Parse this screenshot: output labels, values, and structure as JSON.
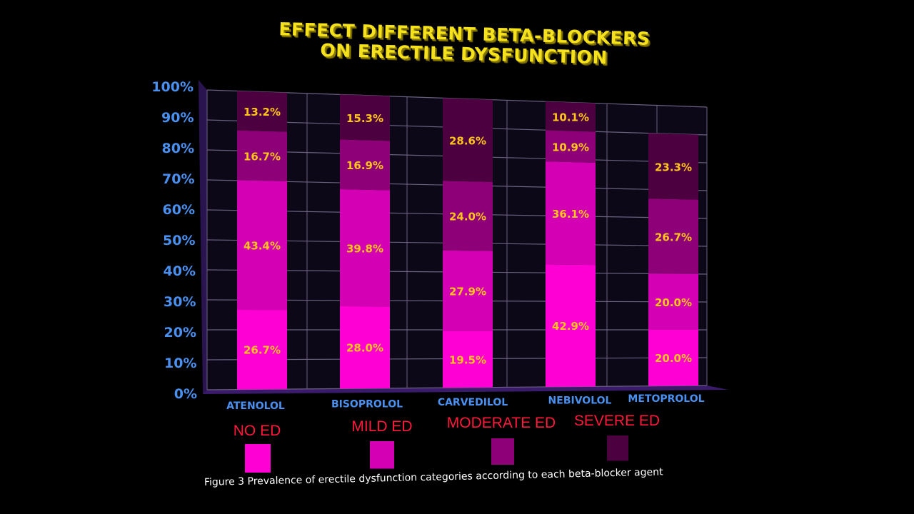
{
  "chart_data": {
    "type": "bar",
    "stacked": true,
    "title": "EFFECT DIFFERENT BETA-BLOCKERS ON ERECTILE DYSFUNCTION",
    "title_lines": [
      "EFFECT DIFFERENT BETA-BLOCKERS",
      "ON ERECTILE DYSFUNCTION"
    ],
    "xlabel": "",
    "ylabel": "",
    "ylim": [
      0,
      100
    ],
    "y_ticks": [
      "0%",
      "10%",
      "20%",
      "30%",
      "40%",
      "50%",
      "60%",
      "70%",
      "80%",
      "90%",
      "100%"
    ],
    "categories": [
      "ATENOLOL",
      "BISOPROLOL",
      "CARVEDILOL",
      "NEBIVOLOL",
      "METOPROLOL"
    ],
    "series": [
      {
        "name": "NO ED",
        "color": "#ff00d4",
        "values": [
          26.7,
          28.0,
          19.5,
          42.9,
          20.0
        ],
        "labels": [
          "26.7%",
          "28.0%",
          "19.5%",
          "42.9%",
          "20.0%"
        ]
      },
      {
        "name": "MILD ED",
        "color": "#d400b4",
        "values": [
          43.4,
          39.8,
          27.9,
          36.1,
          20.0
        ],
        "labels": [
          "43.4%",
          "39.8%",
          "27.9%",
          "36.1%",
          "20.0%"
        ]
      },
      {
        "name": "MODERATE ED",
        "color": "#8e0078",
        "values": [
          16.7,
          16.9,
          24.0,
          10.9,
          26.7
        ],
        "labels": [
          "16.7%",
          "16.9%",
          "24.0%",
          "10.9%",
          "26.7%"
        ]
      },
      {
        "name": "SEVERE ED",
        "color": "#4d0040",
        "values": [
          13.2,
          15.3,
          28.6,
          10.1,
          23.3
        ],
        "labels": [
          "13.2%",
          "15.3%",
          "28.6%",
          "10.1%",
          "23.3%"
        ]
      }
    ],
    "grid": true,
    "legend_position": "bottom",
    "caption": "Figure 3 Prevalence of erectile dysfunction categories according to each beta-blocker agent"
  },
  "colors": {
    "title": "#f5e21c",
    "axis_labels": "#4a90f0",
    "data_labels": "#ffc61a",
    "legend_labels": "#ff1a3c",
    "grid_back": "#0d0818",
    "grid_lines": "#6a6080",
    "floor": "#3a1a6a"
  }
}
